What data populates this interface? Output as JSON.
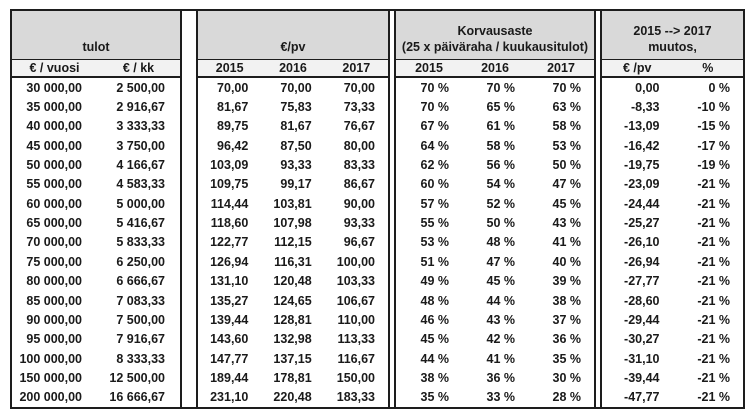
{
  "colors": {
    "header_bg": "#d9d9d9",
    "subheader_bg": "#f2f2f2",
    "border": "#1d1d1d",
    "text": "#1a1a1a",
    "row_bg": "#ffffff"
  },
  "chart_data": {
    "type": "table",
    "column_groups": [
      {
        "title_line1": "",
        "title_line2": "tulot",
        "columns": [
          "€ / vuosi",
          "€ / kk"
        ],
        "col_indices": [
          0,
          1
        ]
      },
      {
        "title_line1": "",
        "title_line2": "€/pv",
        "columns": [
          "2015",
          "2016",
          "2017"
        ],
        "col_indices": [
          2,
          3,
          4
        ]
      },
      {
        "title_line1": "Korvausaste",
        "title_line2": "(25 x päiväraha / kuukausitulot)",
        "columns": [
          "2015",
          "2016",
          "2017"
        ],
        "col_indices": [
          5,
          6,
          7
        ]
      },
      {
        "title_line1": "2015 --> 2017",
        "title_line2": "muutos,",
        "columns": [
          "€ /pv",
          "%"
        ],
        "col_indices": [
          8,
          9
        ]
      }
    ],
    "rows": [
      [
        "30 000,00",
        "2 500,00",
        "70,00",
        "70,00",
        "70,00",
        "70 %",
        "70 %",
        "70 %",
        "0,00",
        "0 %"
      ],
      [
        "35 000,00",
        "2 916,67",
        "81,67",
        "75,83",
        "73,33",
        "70 %",
        "65 %",
        "63 %",
        "-8,33",
        "-10 %"
      ],
      [
        "40 000,00",
        "3 333,33",
        "89,75",
        "81,67",
        "76,67",
        "67 %",
        "61 %",
        "58 %",
        "-13,09",
        "-15 %"
      ],
      [
        "45 000,00",
        "3 750,00",
        "96,42",
        "87,50",
        "80,00",
        "64 %",
        "58 %",
        "53 %",
        "-16,42",
        "-17 %"
      ],
      [
        "50 000,00",
        "4 166,67",
        "103,09",
        "93,33",
        "83,33",
        "62 %",
        "56 %",
        "50 %",
        "-19,75",
        "-19 %"
      ],
      [
        "55 000,00",
        "4 583,33",
        "109,75",
        "99,17",
        "86,67",
        "60 %",
        "54 %",
        "47 %",
        "-23,09",
        "-21 %"
      ],
      [
        "60 000,00",
        "5 000,00",
        "114,44",
        "103,81",
        "90,00",
        "57 %",
        "52 %",
        "45 %",
        "-24,44",
        "-21 %"
      ],
      [
        "65 000,00",
        "5 416,67",
        "118,60",
        "107,98",
        "93,33",
        "55 %",
        "50 %",
        "43 %",
        "-25,27",
        "-21 %"
      ],
      [
        "70 000,00",
        "5 833,33",
        "122,77",
        "112,15",
        "96,67",
        "53 %",
        "48 %",
        "41 %",
        "-26,10",
        "-21 %"
      ],
      [
        "75 000,00",
        "6 250,00",
        "126,94",
        "116,31",
        "100,00",
        "51 %",
        "47 %",
        "40 %",
        "-26,94",
        "-21 %"
      ],
      [
        "80 000,00",
        "6 666,67",
        "131,10",
        "120,48",
        "103,33",
        "49 %",
        "45 %",
        "39 %",
        "-27,77",
        "-21 %"
      ],
      [
        "85 000,00",
        "7 083,33",
        "135,27",
        "124,65",
        "106,67",
        "48 %",
        "44 %",
        "38 %",
        "-28,60",
        "-21 %"
      ],
      [
        "90 000,00",
        "7 500,00",
        "139,44",
        "128,81",
        "110,00",
        "46 %",
        "43 %",
        "37 %",
        "-29,44",
        "-21 %"
      ],
      [
        "95 000,00",
        "7 916,67",
        "143,60",
        "132,98",
        "113,33",
        "45 %",
        "42 %",
        "36 %",
        "-30,27",
        "-21 %"
      ],
      [
        "100 000,00",
        "8 333,33",
        "147,77",
        "137,15",
        "116,67",
        "44 %",
        "41 %",
        "35 %",
        "-31,10",
        "-21 %"
      ],
      [
        "150 000,00",
        "12 500,00",
        "189,44",
        "178,81",
        "150,00",
        "38 %",
        "36 %",
        "30 %",
        "-39,44",
        "-21 %"
      ],
      [
        "200 000,00",
        "16 666,67",
        "231,10",
        "220,48",
        "183,33",
        "35 %",
        "33 %",
        "28 %",
        "-47,77",
        "-21 %"
      ]
    ]
  }
}
